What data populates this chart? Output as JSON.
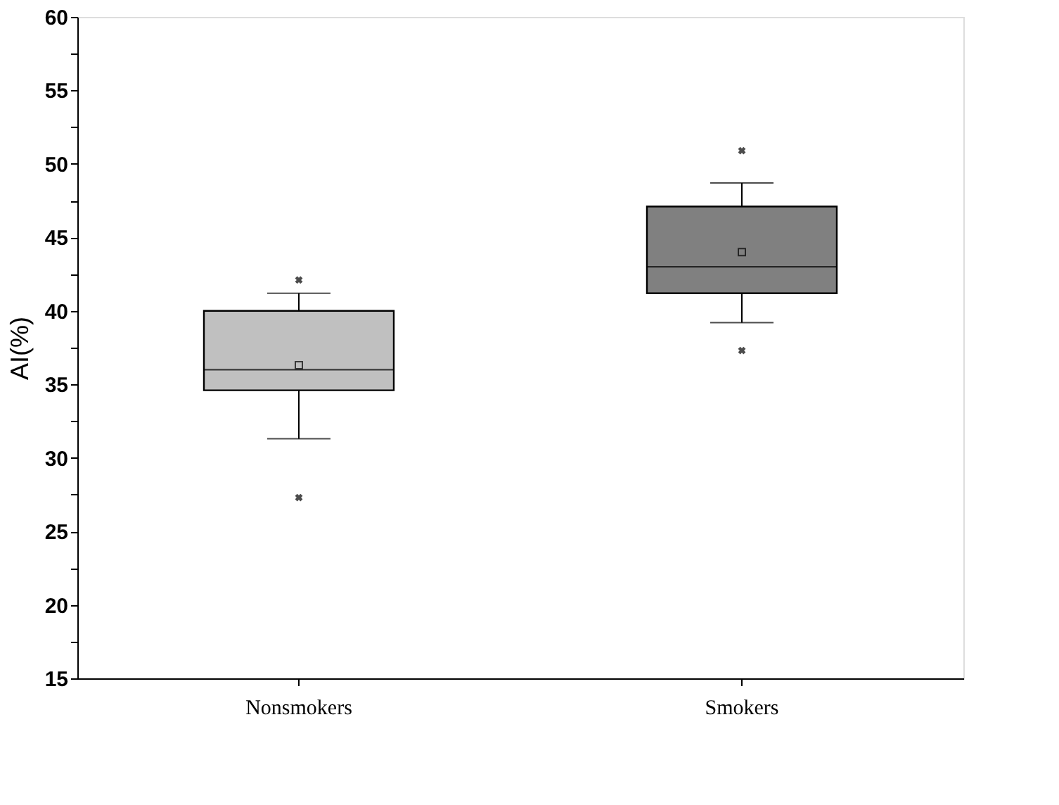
{
  "chart_data": {
    "type": "box",
    "ylabel": "AI(%)",
    "categories": [
      "Nonsmokers",
      "Smokers"
    ],
    "series": [
      {
        "colors": [
          "#c0c0c0",
          "#808080"
        ],
        "boxes": [
          {
            "low": 31.3,
            "q1": 34.6,
            "median": 36.0,
            "q3": 40.0,
            "high": 41.2,
            "mean": 36.3,
            "outliers": [
              42.1,
              27.3
            ]
          },
          {
            "low": 39.2,
            "q1": 41.2,
            "median": 43.0,
            "q3": 47.1,
            "high": 48.7,
            "mean": 44.0,
            "outliers": [
              50.9,
              37.3
            ]
          }
        ]
      }
    ],
    "ylim": [
      15,
      60
    ],
    "yticks": [
      15,
      {
        "value": 17.5,
        "label": null
      },
      20,
      {
        "value": 22.5,
        "label": null
      },
      25,
      {
        "value": 27.5,
        "label": null
      },
      30,
      {
        "value": 32.5,
        "label": null
      },
      35,
      {
        "value": 37.5,
        "label": null
      },
      40,
      {
        "value": 42.5,
        "label": null
      },
      45,
      {
        "value": 47.5,
        "label": null
      },
      50,
      {
        "value": 52.5,
        "label": null
      },
      55,
      {
        "value": 57.5,
        "label": null
      },
      60
    ],
    "grid": false
  }
}
